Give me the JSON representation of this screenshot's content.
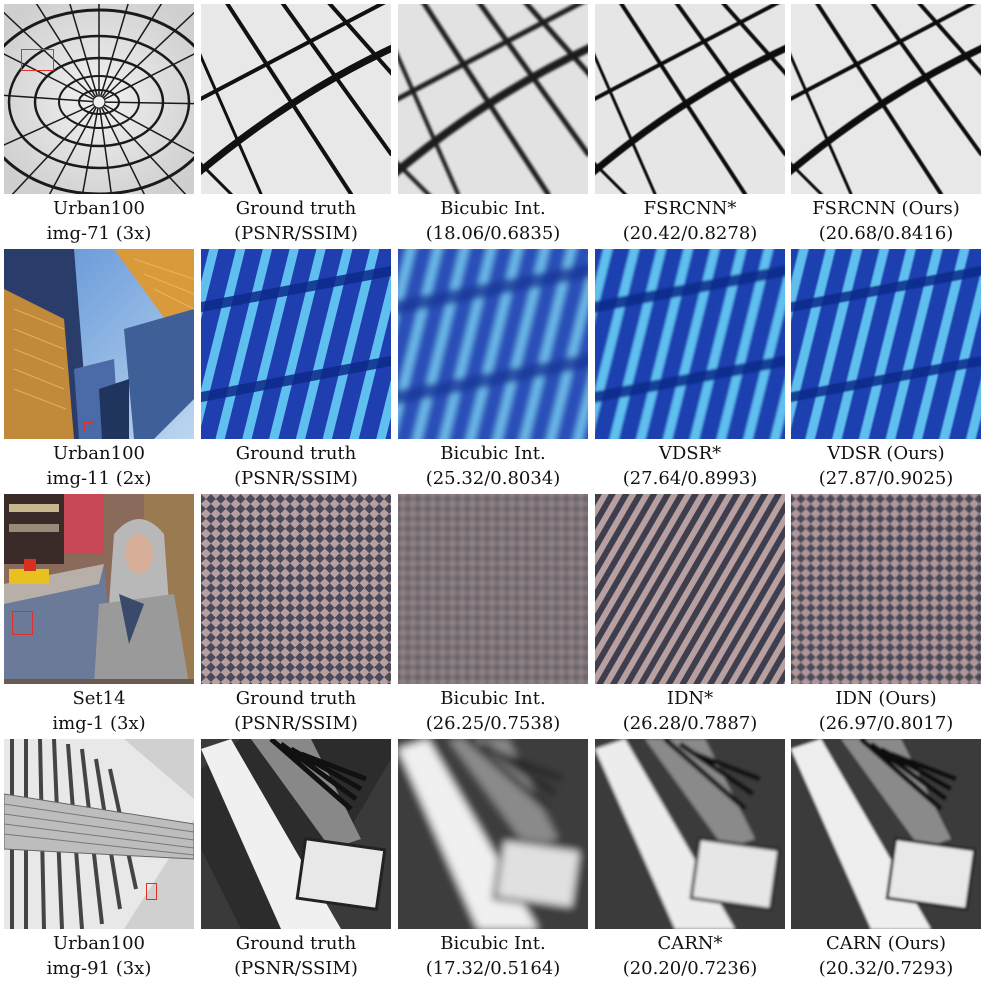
{
  "rows": [
    {
      "dataset": "Urban100",
      "image": "img-71 (3x)",
      "methods": [
        {
          "name": "Ground truth",
          "metric": "(PSNR/SSIM)"
        },
        {
          "name": "Bicubic Int.",
          "metric": "(18.06/0.6835)"
        },
        {
          "name": "FSRCNN*",
          "metric": "(20.42/0.8278)"
        },
        {
          "name": "FSRCNN (Ours)",
          "metric": "(20.68/0.8416)"
        }
      ]
    },
    {
      "dataset": "Urban100",
      "image": "img-11 (2x)",
      "methods": [
        {
          "name": "Ground truth",
          "metric": "(PSNR/SSIM)"
        },
        {
          "name": "Bicubic Int.",
          "metric": "(25.32/0.8034)"
        },
        {
          "name": "VDSR*",
          "metric": "(27.64/0.8993)"
        },
        {
          "name": "VDSR (Ours)",
          "metric": "(27.87/0.9025)"
        }
      ]
    },
    {
      "dataset": "Set14",
      "image": "img-1 (3x)",
      "methods": [
        {
          "name": "Ground truth",
          "metric": "(PSNR/SSIM)"
        },
        {
          "name": "Bicubic Int.",
          "metric": "(26.25/0.7538)"
        },
        {
          "name": "IDN*",
          "metric": "(26.28/0.7887)"
        },
        {
          "name": "IDN (Ours)",
          "metric": "(26.97/0.8017)"
        }
      ]
    },
    {
      "dataset": "Urban100",
      "image": "img-91 (3x)",
      "methods": [
        {
          "name": "Ground truth",
          "metric": "(PSNR/SSIM)"
        },
        {
          "name": "Bicubic Int.",
          "metric": "(17.32/0.5164)"
        },
        {
          "name": "CARN*",
          "metric": "(20.20/0.7236)"
        },
        {
          "name": "CARN (Ours)",
          "metric": "(20.32/0.7293)"
        }
      ]
    }
  ],
  "colors": {
    "highlight_box": "#e0302a"
  }
}
